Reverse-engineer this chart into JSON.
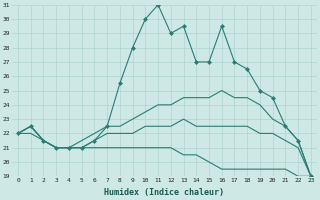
{
  "xlabel": "Humidex (Indice chaleur)",
  "bg_color": "#cde8e5",
  "grid_color": "#aed4d0",
  "line_color": "#2a7d74",
  "series": [
    {
      "y": [
        22.0,
        22.5,
        21.5,
        21.0,
        21.0,
        21.0,
        21.5,
        22.5,
        25.5,
        28.0,
        30.0,
        31.0,
        29.0,
        29.5,
        27.0,
        27.0,
        29.5,
        27.0,
        26.5,
        25.0,
        24.5,
        22.5,
        21.5,
        19.0
      ],
      "marker": true
    },
    {
      "y": [
        22.0,
        22.5,
        21.5,
        21.0,
        21.0,
        21.5,
        22.0,
        22.5,
        22.5,
        23.0,
        23.5,
        24.0,
        24.0,
        24.5,
        24.5,
        24.5,
        25.0,
        24.5,
        24.5,
        24.0,
        23.0,
        22.5,
        21.5,
        19.0
      ],
      "marker": false
    },
    {
      "y": [
        22.0,
        22.5,
        21.5,
        21.0,
        21.0,
        21.0,
        21.5,
        22.0,
        22.0,
        22.0,
        22.5,
        22.5,
        22.5,
        23.0,
        22.5,
        22.5,
        22.5,
        22.5,
        22.5,
        22.0,
        22.0,
        21.5,
        21.0,
        19.0
      ],
      "marker": false
    },
    {
      "y": [
        22.0,
        22.0,
        21.5,
        21.0,
        21.0,
        21.0,
        21.0,
        21.0,
        21.0,
        21.0,
        21.0,
        21.0,
        21.0,
        20.5,
        20.5,
        20.0,
        19.5,
        19.5,
        19.5,
        19.5,
        19.5,
        19.5,
        19.0,
        19.0
      ],
      "marker": false
    }
  ],
  "ylim": [
    19,
    31
  ],
  "xlim": [
    -0.5,
    23.5
  ],
  "yticks": [
    19,
    20,
    21,
    22,
    23,
    24,
    25,
    26,
    27,
    28,
    29,
    30,
    31
  ],
  "xticks": [
    0,
    1,
    2,
    3,
    4,
    5,
    6,
    7,
    8,
    9,
    10,
    11,
    12,
    13,
    14,
    15,
    16,
    17,
    18,
    19,
    20,
    21,
    22,
    23
  ]
}
